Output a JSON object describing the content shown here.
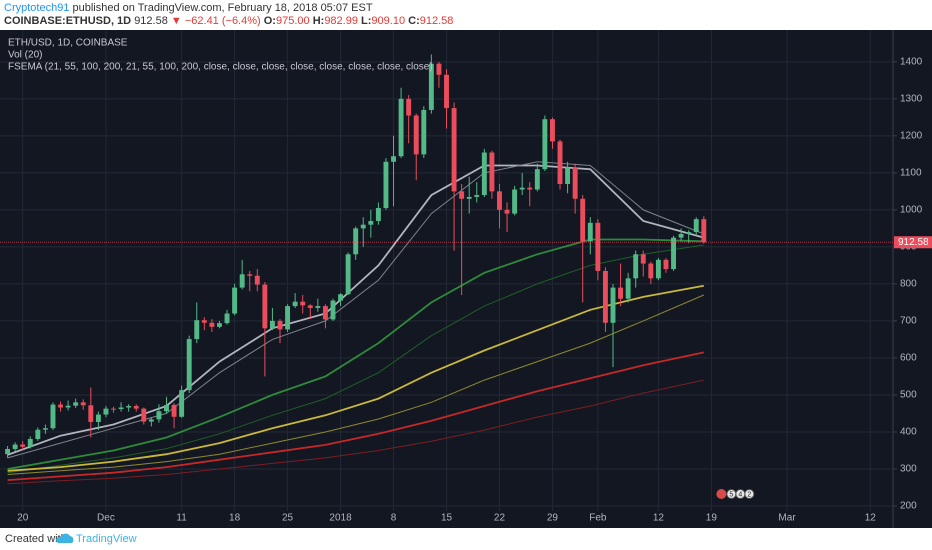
{
  "header": {
    "author": "Cryptotech91",
    "published": "published on TradingView.com, February 18, 2018 05:07 EST",
    "symbol": "COINBASE:ETHUSD, 1D",
    "last": "912.58",
    "change": "▼ −62.41 (−6.4%)",
    "ohlc": [
      {
        "label": "O:",
        "value": "975.00"
      },
      {
        "label": "H:",
        "value": "982.99"
      },
      {
        "label": "L:",
        "value": "909.10"
      },
      {
        "label": "C:",
        "value": "912.58"
      }
    ]
  },
  "chart_data": {
    "type": "candlestick",
    "legend": [
      "ETH/USD, 1D, COINBASE",
      "Vol (20)",
      "FSEMA (21, 55, 100, 200, 21, 55, 100, 200, close, close, close, close, close, close, close, close)"
    ],
    "xlim": [
      -1,
      117
    ],
    "xticks": [
      {
        "value": 2,
        "label": "20"
      },
      {
        "value": 13,
        "label": "Dec"
      },
      {
        "value": 23,
        "label": "11"
      },
      {
        "value": 30,
        "label": "18"
      },
      {
        "value": 37,
        "label": "25"
      },
      {
        "value": 44,
        "label": "2018"
      },
      {
        "value": 51,
        "label": "8"
      },
      {
        "value": 58,
        "label": "15"
      },
      {
        "value": 65,
        "label": "22"
      },
      {
        "value": 72,
        "label": "29"
      },
      {
        "value": 78,
        "label": "Feb"
      },
      {
        "value": 86,
        "label": "12"
      },
      {
        "value": 93,
        "label": "19"
      },
      {
        "value": 103,
        "label": "Mar"
      },
      {
        "value": 114,
        "label": "12"
      }
    ],
    "ylim": [
      154,
      1486
    ],
    "yticks": [
      200,
      300,
      400,
      500,
      600,
      700,
      800,
      900,
      1000,
      1100,
      1200,
      1300,
      1400
    ],
    "grid": true,
    "series": [
      {
        "up_color": "#53b987",
        "down_color": "#eb4d5c",
        "open": [
          340,
          354,
          366,
          360,
          381,
          406,
          410,
          474,
          466,
          471,
          480,
          472,
          427,
          447,
          463,
          462,
          466,
          470,
          463,
          428,
          434,
          456,
          473,
          441,
          513,
          651,
          702,
          695,
          684,
          694,
          720,
          790,
          826,
          822,
          798,
          680,
          700,
          677,
          740,
          752,
          742,
          735,
          740,
          704,
          755,
          772,
          880,
          950,
          960,
          970,
          1005,
          1130,
          1145,
          1300,
          1255,
          1150,
          1270,
          1395,
          1365,
          1275,
          1050,
          1030,
          1035,
          1040,
          1155,
          1050,
          1000,
          990,
          1055,
          1060,
          1055,
          1110,
          1245,
          1185,
          1070,
          1115,
          1030,
          915,
          965,
          835,
          695,
          790,
          760,
          815,
          880,
          855,
          815,
          865,
          840,
          925,
          935,
          940,
          975
        ],
        "high": [
          362,
          372,
          375,
          388,
          412,
          420,
          480,
          482,
          485,
          490,
          488,
          520,
          455,
          470,
          468,
          480,
          475,
          475,
          466,
          440,
          475,
          495,
          478,
          525,
          660,
          750,
          710,
          705,
          700,
          730,
          800,
          865,
          835,
          840,
          805,
          735,
          705,
          745,
          775,
          770,
          745,
          760,
          745,
          760,
          775,
          885,
          955,
          980,
          1000,
          1020,
          1140,
          1200,
          1330,
          1310,
          1260,
          1280,
          1420,
          1400,
          1380,
          1290,
          1070,
          1090,
          1075,
          1165,
          1160,
          1070,
          1020,
          1065,
          1100,
          1075,
          1125,
          1255,
          1250,
          1190,
          1130,
          1125,
          1040,
          980,
          975,
          845,
          800,
          855,
          830,
          890,
          890,
          860,
          870,
          870,
          930,
          950,
          945,
          980,
          982.99
        ],
        "low": [
          330,
          348,
          352,
          355,
          376,
          395,
          405,
          455,
          458,
          465,
          460,
          385,
          405,
          440,
          452,
          455,
          455,
          455,
          420,
          415,
          425,
          450,
          410,
          438,
          505,
          640,
          675,
          670,
          680,
          690,
          715,
          785,
          780,
          780,
          550,
          675,
          640,
          670,
          735,
          720,
          705,
          725,
          680,
          700,
          740,
          770,
          865,
          900,
          925,
          960,
          1000,
          1010,
          1140,
          1180,
          1080,
          1140,
          1260,
          1330,
          1220,
          890,
          770,
          990,
          1020,
          1035,
          1030,
          950,
          940,
          985,
          1040,
          1010,
          1050,
          1105,
          1165,
          1055,
          1045,
          990,
          750,
          880,
          810,
          670,
          575,
          740,
          750,
          790,
          820,
          800,
          810,
          830,
          835,
          915,
          910,
          930,
          909.1
        ],
        "close": [
          354,
          366,
          360,
          381,
          406,
          410,
          474,
          466,
          471,
          480,
          472,
          427,
          447,
          463,
          462,
          466,
          470,
          463,
          428,
          434,
          456,
          473,
          441,
          513,
          651,
          702,
          695,
          684,
          694,
          720,
          790,
          826,
          822,
          798,
          680,
          700,
          677,
          740,
          752,
          742,
          735,
          740,
          704,
          755,
          772,
          880,
          950,
          960,
          970,
          1005,
          1130,
          1145,
          1300,
          1255,
          1150,
          1270,
          1395,
          1365,
          1275,
          1050,
          1030,
          1035,
          1040,
          1155,
          1050,
          1000,
          990,
          1055,
          1060,
          1055,
          1110,
          1245,
          1185,
          1070,
          1115,
          1030,
          915,
          965,
          835,
          695,
          790,
          760,
          815,
          880,
          855,
          815,
          865,
          840,
          925,
          935,
          940,
          975,
          912.58
        ]
      }
    ],
    "overlays": {
      "x": [
        0,
        7,
        14,
        21,
        28,
        35,
        42,
        49,
        56,
        63,
        70,
        77,
        84,
        92
      ],
      "lines": [
        {
          "color": "#b2b5be",
          "values": [
            338,
            390,
            420,
            470,
            590,
            680,
            720,
            850,
            1040,
            1120,
            1120,
            1110,
            970,
            925
          ]
        },
        {
          "color": "#7e828c",
          "values": [
            330,
            370,
            410,
            450,
            560,
            650,
            700,
            810,
            990,
            1100,
            1130,
            1120,
            1000,
            935
          ]
        },
        {
          "color": "#2e8b3a",
          "values": [
            300,
            325,
            350,
            385,
            440,
            500,
            550,
            640,
            750,
            830,
            880,
            920,
            920,
            915
          ]
        },
        {
          "color": "#1f5e28",
          "values": [
            290,
            310,
            330,
            355,
            395,
            445,
            490,
            560,
            660,
            740,
            800,
            850,
            880,
            905
          ]
        },
        {
          "color": "#c9b83a",
          "values": [
            295,
            305,
            320,
            340,
            370,
            410,
            445,
            490,
            560,
            620,
            675,
            730,
            765,
            795
          ]
        },
        {
          "color": "#8f8a2e",
          "values": [
            285,
            295,
            305,
            320,
            340,
            370,
            400,
            435,
            480,
            540,
            590,
            640,
            700,
            770
          ]
        },
        {
          "color": "#c62828",
          "values": [
            270,
            280,
            290,
            305,
            325,
            345,
            365,
            395,
            430,
            470,
            510,
            545,
            580,
            615
          ]
        },
        {
          "color": "#7a1f22",
          "values": [
            260,
            268,
            275,
            285,
            300,
            315,
            330,
            350,
            375,
            405,
            440,
            470,
            505,
            540
          ]
        }
      ]
    },
    "events": [
      "5",
      "4",
      "2"
    ]
  },
  "footer": {
    "created": "Created with",
    "brand": "TradingView"
  }
}
